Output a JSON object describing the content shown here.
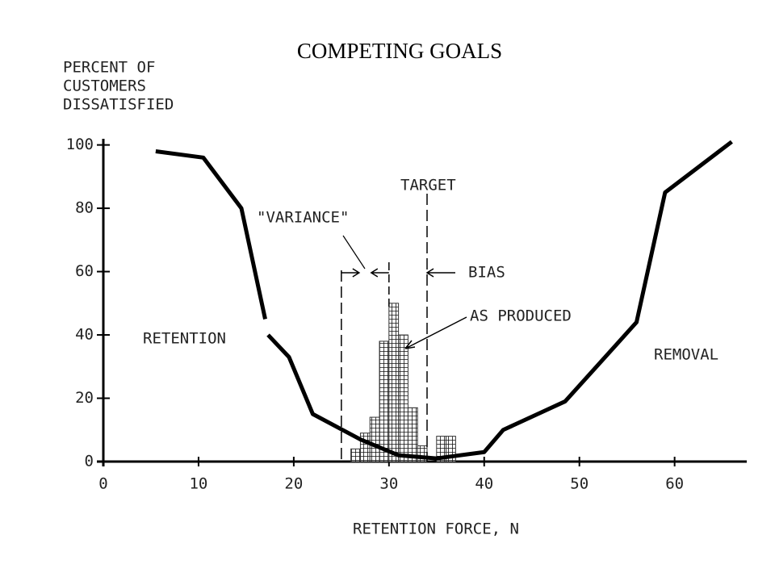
{
  "chart_data": {
    "type": "line",
    "title": "COMPETING GOALS",
    "x_label": "RETENTION FORCE, N",
    "y_label": [
      "PERCENT OF",
      "CUSTOMERS",
      "DISSATISFIED"
    ],
    "xlim": [
      0,
      68
    ],
    "ylim": [
      0,
      105
    ],
    "xticks": [
      0,
      10,
      20,
      30,
      40,
      50,
      60
    ],
    "yticks": [
      0,
      20,
      40,
      60,
      80,
      100
    ],
    "series": [
      {
        "color": "#000000",
        "x": [
          5.5,
          10.5,
          14.5,
          17,
          17.1,
          17.3,
          19.5,
          22,
          27,
          31,
          35,
          40,
          42,
          48.5,
          56,
          59,
          66
        ],
        "values": [
          98,
          96,
          80,
          45,
          null,
          40,
          33,
          15,
          7,
          2,
          1,
          3,
          10,
          19,
          44,
          85,
          101
        ]
      }
    ],
    "histogram": {
      "label": "AS PRODUCED",
      "color": "#333333",
      "bins": [
        26,
        27,
        28,
        29,
        30,
        31,
        32,
        33,
        34,
        35,
        36,
        37
      ],
      "counts": [
        4,
        9,
        14,
        38,
        50,
        40,
        17,
        5,
        0,
        8,
        8
      ]
    },
    "target": 34,
    "variance_range": [
      25,
      30
    ],
    "annotations": [
      "RETENTION",
      "REMOVAL",
      "TARGET",
      "\"VARIANCE\"",
      "BIAS"
    ]
  }
}
